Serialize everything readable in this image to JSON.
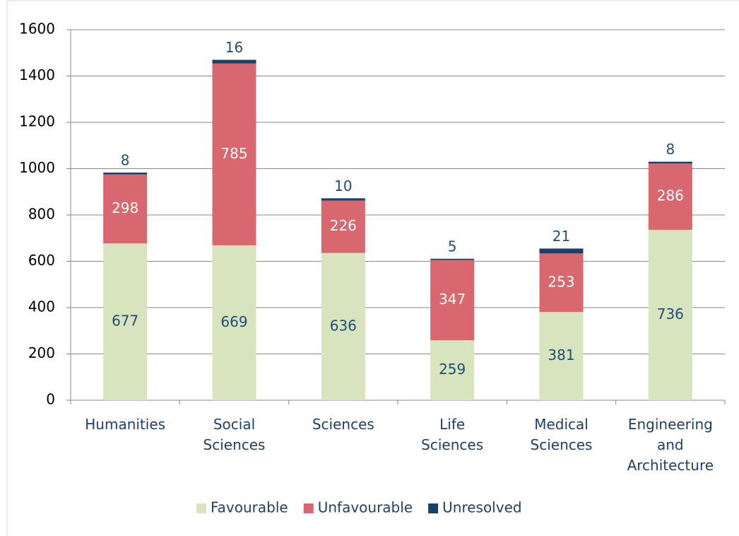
{
  "chart_data": {
    "type": "stacked_bar",
    "categories": [
      "Humanities",
      "Social Sciences",
      "Sciences",
      "Life Sciences",
      "Medical Sciences",
      "Engineering and Architecture"
    ],
    "series": [
      {
        "name": "Favourable",
        "color": "#d7e4bd",
        "label_color": "#1f4e79",
        "values": [
          677,
          669,
          636,
          259,
          381,
          736
        ]
      },
      {
        "name": "Unfavourable",
        "color": "#d9676f",
        "label_color": "#ffffff",
        "values": [
          298,
          785,
          226,
          347,
          253,
          286
        ]
      },
      {
        "name": "Unresolved",
        "color": "#17406b",
        "label_color": "#1f4e79",
        "values": [
          8,
          16,
          10,
          5,
          21,
          8
        ]
      }
    ],
    "ylim": [
      0,
      1600
    ],
    "yticks": [
      0,
      200,
      400,
      600,
      800,
      1000,
      1200,
      1400,
      1600
    ],
    "grid": true,
    "legend": "bottom"
  }
}
